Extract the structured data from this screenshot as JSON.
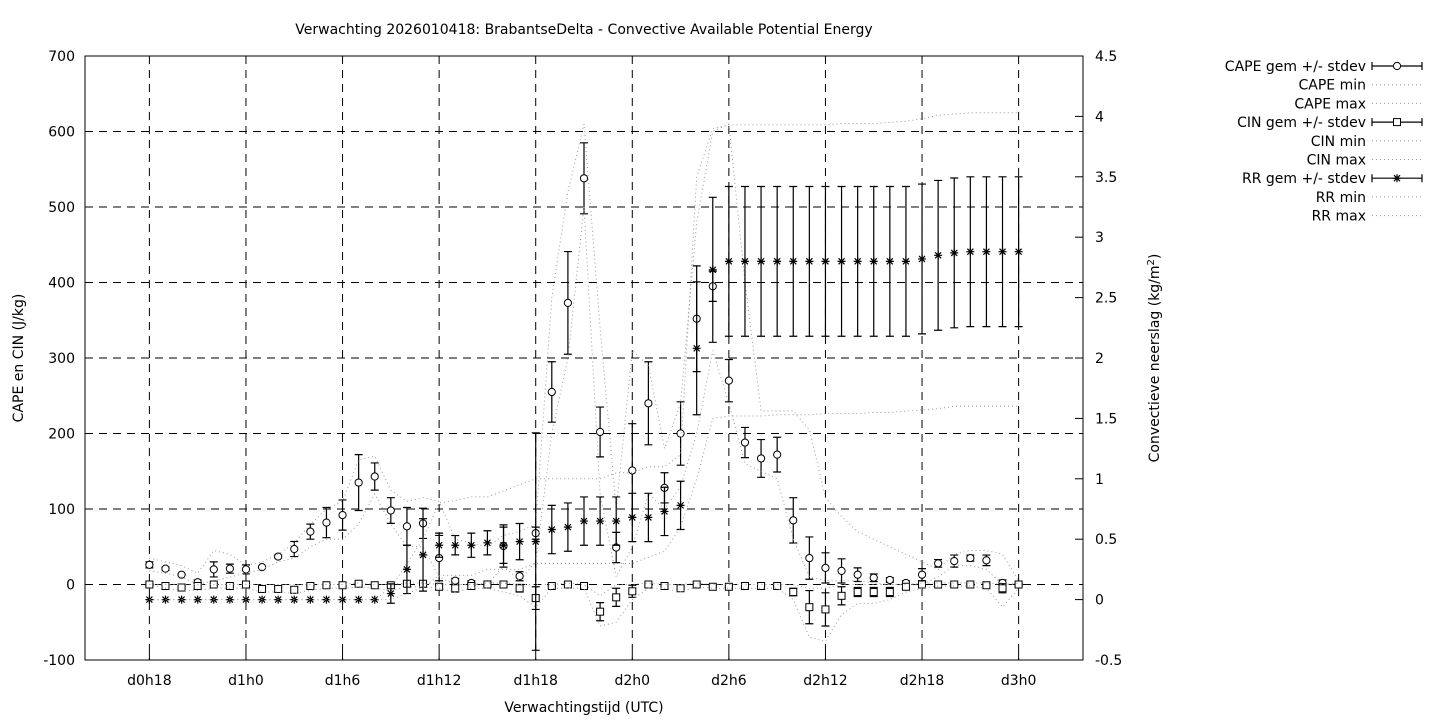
{
  "chart_data": {
    "type": "line",
    "title": "Verwachting 2026010418: BrabantseDelta - Convective Available Potential Energy",
    "xlabel": "Verwachtingstijd (UTC)",
    "ylabel": "CAPE en CIN (J/kg)",
    "y2label": "Convectieve neerslag (kg/m",
    "y2label_sup": "2",
    "y2label_end": ")",
    "xlim_hours": [
      14,
      76
    ],
    "ylim": [
      -100,
      700
    ],
    "y2lim": [
      -0.5,
      4.5
    ],
    "yticks": [
      -100,
      0,
      100,
      200,
      300,
      400,
      500,
      600,
      700
    ],
    "y2ticks": [
      "-0.5",
      "0",
      "0.5",
      "1",
      "1.5",
      "2",
      "2.5",
      "3",
      "3.5",
      "4",
      "4.5"
    ],
    "xticks": [
      {
        "hour": 18,
        "label": "d0h18"
      },
      {
        "hour": 24,
        "label": "d1h0"
      },
      {
        "hour": 30,
        "label": "d1h6"
      },
      {
        "hour": 36,
        "label": "d1h12"
      },
      {
        "hour": 42,
        "label": "d1h18"
      },
      {
        "hour": 48,
        "label": "d2h0"
      },
      {
        "hour": 54,
        "label": "d2h6"
      },
      {
        "hour": 60,
        "label": "d2h12"
      },
      {
        "hour": 66,
        "label": "d2h18"
      },
      {
        "hour": 72,
        "label": "d3h0"
      }
    ],
    "grid": true,
    "legend_placement": "outside-top-right",
    "x_start_hour": 18,
    "series": [
      {
        "name": "CAPE gem +/- stdev",
        "axis": "y1",
        "style": "errorbar-circle",
        "values": [
          26,
          21,
          13,
          3,
          20,
          21,
          20,
          23,
          37,
          47,
          70,
          82,
          92,
          135,
          143,
          98,
          77,
          81,
          35,
          5,
          2,
          0,
          51,
          11,
          68,
          255,
          373,
          538,
          202,
          49,
          151,
          240,
          128,
          200,
          352,
          395,
          270,
          188,
          167,
          172,
          85,
          35,
          22,
          18,
          13,
          9,
          6,
          2,
          13,
          28,
          31,
          35,
          32,
          2,
          0
        ],
        "stdev": [
          4,
          2,
          1,
          3,
          10,
          6,
          6,
          1,
          2,
          10,
          10,
          20,
          20,
          37,
          18,
          17,
          25,
          20,
          30,
          3,
          3,
          2,
          28,
          6,
          8,
          40,
          68,
          47,
          33,
          20,
          62,
          55,
          20,
          42,
          70,
          20,
          28,
          20,
          25,
          23,
          30,
          28,
          20,
          16,
          9,
          5,
          3,
          3,
          8,
          5,
          8,
          4,
          7,
          4,
          2
        ]
      },
      {
        "name": "CAPE min",
        "axis": "y1",
        "style": "dotted",
        "values": [
          18,
          15,
          10,
          0,
          5,
          10,
          15,
          20,
          30,
          35,
          50,
          60,
          60,
          80,
          120,
          80,
          50,
          50,
          10,
          0,
          0,
          0,
          25,
          5,
          30,
          200,
          300,
          500,
          120,
          10,
          50,
          120,
          100,
          130,
          200,
          310,
          240,
          160,
          150,
          140,
          60,
          10,
          5,
          5,
          5,
          2,
          0,
          0,
          0,
          10,
          25,
          25,
          20,
          0,
          0
        ]
      },
      {
        "name": "CAPE max",
        "axis": "y1",
        "style": "dotted",
        "values": [
          35,
          30,
          25,
          15,
          45,
          40,
          25,
          30,
          40,
          55,
          80,
          100,
          110,
          165,
          170,
          125,
          110,
          115,
          110,
          60,
          55,
          50,
          65,
          70,
          80,
          380,
          520,
          610,
          340,
          100,
          310,
          290,
          180,
          240,
          480,
          600,
          610,
          400,
          230,
          230,
          230,
          205,
          115,
          90,
          70,
          60,
          50,
          40,
          30,
          20,
          40,
          45,
          45,
          40,
          5
        ]
      },
      {
        "name": "CIN gem +/- stdev",
        "axis": "y1",
        "style": "errorbar-square",
        "values": [
          0,
          -2,
          -4,
          -2,
          0,
          -2,
          0,
          -6,
          -6,
          -7,
          -2,
          -1,
          -1,
          1,
          -1,
          -1,
          1,
          1,
          -3,
          -5,
          -2,
          0,
          0,
          -5,
          -18,
          -2,
          0,
          -2,
          -36,
          -17,
          -9,
          0,
          -2,
          -5,
          0,
          -3,
          -3,
          -2,
          -2,
          -2,
          -10,
          -30,
          -33,
          -15,
          -10,
          -10,
          -10,
          -3,
          0,
          0,
          0,
          0,
          -1,
          -5,
          0
        ],
        "stdev": [
          1,
          1,
          2,
          4,
          1,
          2,
          1,
          2,
          3,
          4,
          1,
          1,
          1,
          1,
          1,
          4,
          1,
          1,
          4,
          5,
          3,
          2,
          2,
          5,
          15,
          1,
          1,
          1,
          12,
          12,
          8,
          1,
          1,
          2,
          1,
          1,
          1,
          1,
          1,
          1,
          5,
          22,
          22,
          12,
          6,
          6,
          6,
          3,
          2,
          1,
          1,
          1,
          1,
          6,
          1
        ]
      },
      {
        "name": "CIN min",
        "axis": "y1",
        "style": "dotted",
        "values": [
          0,
          -5,
          -8,
          -8,
          -5,
          -5,
          -5,
          -10,
          -10,
          -12,
          -8,
          -5,
          -5,
          -3,
          -5,
          -8,
          -3,
          -3,
          -5,
          -10,
          -5,
          -5,
          -10,
          -15,
          -30,
          -5,
          -5,
          -5,
          -55,
          -50,
          -20,
          -5,
          -5,
          -10,
          -3,
          -5,
          -5,
          -5,
          -5,
          -5,
          -20,
          -70,
          -75,
          -40,
          -25,
          -25,
          -20,
          -10,
          -5,
          -2,
          -2,
          -2,
          -5,
          -30,
          -5
        ]
      },
      {
        "name": "CIN max",
        "axis": "y1",
        "style": "dotted",
        "values": [
          0,
          0,
          0,
          0,
          0,
          0,
          0,
          0,
          0,
          0,
          0,
          0,
          0,
          2,
          0,
          0,
          2,
          2,
          0,
          0,
          0,
          2,
          2,
          0,
          0,
          0,
          2,
          0,
          -15,
          0,
          0,
          2,
          0,
          0,
          2,
          0,
          0,
          0,
          0,
          0,
          0,
          -5,
          -5,
          0,
          0,
          0,
          0,
          0,
          2,
          2,
          2,
          2,
          2,
          0,
          2
        ]
      },
      {
        "name": "RR gem +/- stdev",
        "axis": "y2",
        "style": "errorbar-star",
        "values": [
          0,
          0,
          0,
          0,
          0,
          0,
          0,
          0,
          0,
          0,
          0,
          0,
          0,
          0,
          0,
          0.05,
          0.25,
          0.37,
          0.45,
          0.45,
          0.45,
          0.47,
          0.45,
          0.48,
          0.48,
          0.58,
          0.6,
          0.65,
          0.65,
          0.65,
          0.68,
          0.68,
          0.73,
          0.78,
          2.08,
          2.73,
          2.8,
          2.8,
          2.8,
          2.8,
          2.8,
          2.8,
          2.8,
          2.8,
          2.8,
          2.8,
          2.8,
          2.8,
          2.82,
          2.85,
          2.87,
          2.88,
          2.88,
          2.88,
          2.88
        ],
        "stdev": [
          0,
          0,
          0,
          0,
          0,
          0,
          0,
          0,
          0,
          0,
          0,
          0,
          0,
          0,
          0,
          0.08,
          0.2,
          0.3,
          0.1,
          0.08,
          0.1,
          0.1,
          0.15,
          0.15,
          0.9,
          0.2,
          0.2,
          0.2,
          0.2,
          0.2,
          0.2,
          0.2,
          0.2,
          0.2,
          0.55,
          0.6,
          0.62,
          0.62,
          0.62,
          0.62,
          0.62,
          0.62,
          0.62,
          0.62,
          0.62,
          0.62,
          0.62,
          0.62,
          0.62,
          0.62,
          0.62,
          0.62,
          0.62,
          0.62,
          0.62
        ]
      },
      {
        "name": "RR min",
        "axis": "y2",
        "style": "dotted",
        "values": [
          0,
          0,
          0,
          0,
          0,
          0,
          0,
          0,
          0,
          0,
          0,
          0,
          0,
          0,
          0,
          0,
          0.05,
          0.1,
          0.2,
          0.2,
          0.2,
          0.25,
          0.25,
          0.25,
          0.3,
          0.3,
          0.3,
          0.3,
          0.3,
          0.3,
          0.3,
          0.35,
          0.4,
          0.6,
          1.0,
          1.5,
          1.52,
          1.52,
          1.52,
          1.53,
          1.53,
          1.53,
          1.54,
          1.54,
          1.54,
          1.55,
          1.55,
          1.56,
          1.57,
          1.58,
          1.6,
          1.6,
          1.6,
          1.6,
          1.6
        ]
      },
      {
        "name": "RR max",
        "axis": "y2",
        "style": "dotted",
        "values": [
          0,
          0,
          0,
          0,
          0,
          0,
          0,
          0,
          0,
          0,
          0,
          0,
          0,
          0,
          0,
          0.1,
          0.3,
          0.5,
          0.8,
          0.82,
          0.85,
          0.85,
          0.9,
          0.95,
          1.0,
          1.0,
          1.0,
          1.0,
          1.0,
          1.05,
          1.05,
          1.1,
          1.1,
          1.2,
          3.5,
          3.9,
          3.93,
          3.93,
          3.93,
          3.93,
          3.93,
          3.93,
          3.93,
          3.94,
          3.94,
          3.94,
          3.95,
          3.96,
          3.98,
          4.01,
          4.02,
          4.03,
          4.03,
          4.03,
          4.03
        ]
      }
    ]
  }
}
